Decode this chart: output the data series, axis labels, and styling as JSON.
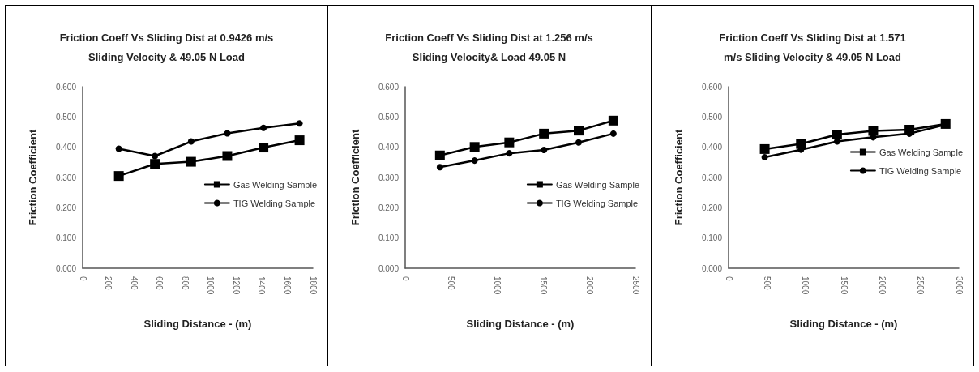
{
  "chart_data": [
    {
      "type": "line",
      "title": "Friction Coeff Vs Sliding Dist at 0.9426 m/s\nSliding Velocity & 49.05 N Load",
      "xlabel": "Sliding Distance - (m)",
      "ylabel": "Friction Coefficient",
      "x": [
        283,
        565,
        848,
        1131,
        1414,
        1696
      ],
      "series": [
        {
          "name": "Gas Welding Sample",
          "color": "#000000",
          "marker": "square",
          "values": [
            0.305,
            0.345,
            0.352,
            0.371,
            0.399,
            0.423
          ]
        },
        {
          "name": "TIG Welding Sample",
          "color": "#000000",
          "marker": "circle",
          "values": [
            0.395,
            0.371,
            0.419,
            0.446,
            0.464,
            0.479
          ]
        }
      ],
      "xlim": [
        0,
        1800
      ],
      "xticks": [
        0,
        200,
        400,
        600,
        800,
        1000,
        1200,
        1400,
        1600,
        1800
      ],
      "ylim": [
        0,
        0.6
      ],
      "yticks": [
        {
          "value": 0,
          "label": "0.000"
        },
        {
          "value": 0.1,
          "label": "0.100"
        },
        {
          "value": 0.2,
          "label": "0.200"
        },
        {
          "value": 0.3,
          "label": "0.300"
        },
        {
          "value": 0.4,
          "label": "0.400"
        },
        {
          "value": 0.5,
          "label": "0.500"
        },
        {
          "value": 0.6,
          "label": "0.600"
        }
      ],
      "grid": false,
      "legend": "bottom right",
      "line_style": "solid"
    },
    {
      "type": "line",
      "title": "Friction Coeff Vs Sliding Dist at 1.256 m/s\nSliding Velocity& Load 49.05 N",
      "xlabel": "Sliding Distance - (m)",
      "ylabel": "Friction Coefficient",
      "x": [
        377,
        754,
        1130,
        1507,
        1884,
        2261
      ],
      "series": [
        {
          "name": "Gas Welding Sample",
          "color": "#000000",
          "marker": "square",
          "values": [
            0.373,
            0.401,
            0.416,
            0.445,
            0.455,
            0.488
          ]
        },
        {
          "name": "TIG Welding Sample",
          "color": "#000000",
          "marker": "circle",
          "values": [
            0.334,
            0.356,
            0.38,
            0.391,
            0.416,
            0.445
          ]
        }
      ],
      "xlim": [
        0,
        2500
      ],
      "xticks": [
        0,
        500,
        1000,
        1500,
        2000,
        2500
      ],
      "ylim": [
        0,
        0.6
      ],
      "yticks": [
        {
          "value": 0,
          "label": "0.000"
        },
        {
          "value": 0.1,
          "label": "0.100"
        },
        {
          "value": 0.2,
          "label": "0.200"
        },
        {
          "value": 0.3,
          "label": "0.300"
        },
        {
          "value": 0.4,
          "label": "0.400"
        },
        {
          "value": 0.5,
          "label": "0.500"
        },
        {
          "value": 0.6,
          "label": "0.600"
        }
      ],
      "grid": false,
      "legend": "bottom right",
      "line_style": "solid"
    },
    {
      "type": "line",
      "title": "Friction Coeff Vs Sliding Dist at 1.571\nm/s Sliding Velocity & 49.05 N Load",
      "xlabel": "Sliding Distance - (m)",
      "ylabel": "Friction Coefficient",
      "x": [
        471,
        943,
        1414,
        1885,
        2357,
        2828
      ],
      "series": [
        {
          "name": "Gas Welding Sample",
          "color": "#000000",
          "marker": "square",
          "values": [
            0.394,
            0.411,
            0.442,
            0.454,
            0.458,
            0.477
          ]
        },
        {
          "name": "TIG Welding Sample",
          "color": "#000000",
          "marker": "circle",
          "values": [
            0.367,
            0.392,
            0.419,
            0.433,
            0.445,
            0.475
          ]
        }
      ],
      "xlim": [
        0,
        3000
      ],
      "xticks": [
        0,
        500,
        1000,
        1500,
        2000,
        2500,
        3000
      ],
      "ylim": [
        0,
        0.6
      ],
      "yticks": [
        {
          "value": 0,
          "label": "0.000"
        },
        {
          "value": 0.1,
          "label": "0.100"
        },
        {
          "value": 0.2,
          "label": "0.200"
        },
        {
          "value": 0.3,
          "label": "0.300"
        },
        {
          "value": 0.4,
          "label": "0.400"
        },
        {
          "value": 0.5,
          "label": "0.500"
        },
        {
          "value": 0.6,
          "label": "0.600"
        }
      ],
      "grid": false,
      "legend": "center right",
      "line_style": "solid"
    }
  ]
}
